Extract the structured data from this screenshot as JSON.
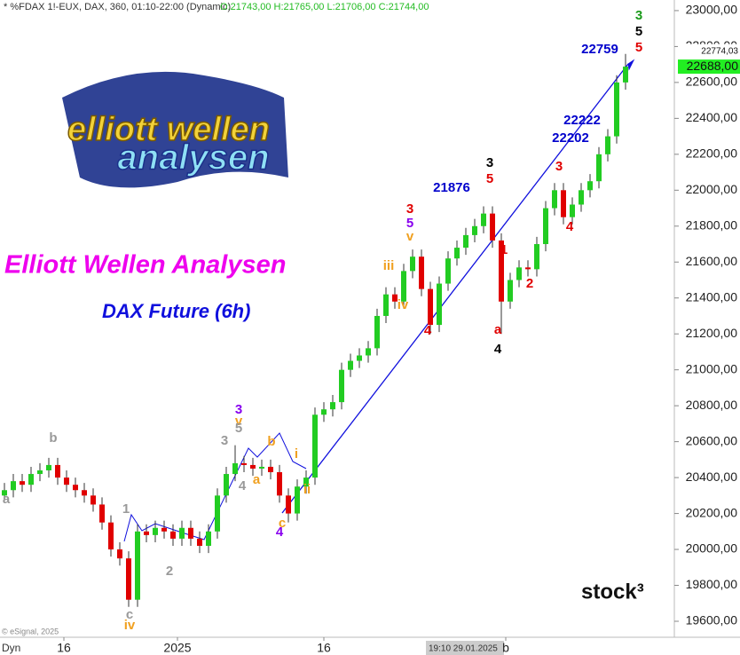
{
  "chart_data": {
    "type": "candlestick",
    "header": "* %FDAX 1!-EUX, DAX, 360, 01:10-22:00 (Dynamic)",
    "ohlc_header": "O:21743,00 H:21765,00 L:21706,00 C:21744,00",
    "title": "Elliott Wellen Analysen",
    "subtitle": "DAX Future (6h)",
    "logo": {
      "line1": "elliott wellen",
      "line2": "analysen"
    },
    "brand": "stock³",
    "copyright": "© eSignal, 2025",
    "cursor_label": "19:10 29.01.2025",
    "interval_label": "Dyn",
    "up_color": "#22cc22",
    "down_color": "#e00000",
    "ylim": [
      19511,
      23059
    ],
    "yticks": [
      {
        "value": 19600,
        "label": "19600,00"
      },
      {
        "value": 19800,
        "label": "19800,00"
      },
      {
        "value": 20000,
        "label": "20000,00"
      },
      {
        "value": 20200,
        "label": "20200,00"
      },
      {
        "value": 20400,
        "label": "20400,00"
      },
      {
        "value": 20600,
        "label": "20600,00"
      },
      {
        "value": 20800,
        "label": "20800,00"
      },
      {
        "value": 21000,
        "label": "21000,00"
      },
      {
        "value": 21200,
        "label": "21200,00"
      },
      {
        "value": 21400,
        "label": "21400,00"
      },
      {
        "value": 21600,
        "label": "21600,00"
      },
      {
        "value": 21800,
        "label": "21800,00"
      },
      {
        "value": 22000,
        "label": "22000,00"
      },
      {
        "value": 22200,
        "label": "22200,00"
      },
      {
        "value": 22400,
        "label": "22400,00"
      },
      {
        "value": 22600,
        "label": "22600,00"
      },
      {
        "value": 22800,
        "label": "22800,00"
      },
      {
        "value": 23000,
        "label": "23000,00"
      }
    ],
    "xticks": [
      {
        "value": 6.7,
        "label": "16"
      },
      {
        "value": 19.5,
        "label": "2025"
      },
      {
        "value": 36,
        "label": "16"
      },
      {
        "value": 56.5,
        "label": "b"
      }
    ],
    "price_markers": [
      {
        "value": 22774.03,
        "label": "22774,03",
        "color": "#ffffff"
      },
      {
        "value": 22688,
        "label": "22688,00",
        "color": "#22ee22"
      }
    ],
    "open": [
      20300,
      20330,
      20380,
      20360,
      20420,
      20440,
      20470,
      20400,
      20360,
      20330,
      20300,
      20250,
      20150,
      20000,
      19950,
      19720,
      20100,
      20080,
      20120,
      20100,
      20060,
      20120,
      20060,
      20020,
      20100,
      20300,
      20420,
      20480,
      20470,
      20450,
      20460,
      20430,
      20300,
      20200,
      20350,
      20400,
      20750,
      20780,
      20820,
      21000,
      21050,
      21080,
      21120,
      21300,
      21420,
      21380,
      21550,
      21630,
      21450,
      21250,
      21480,
      21620,
      21680,
      21750,
      21800,
      21870,
      21720,
      21380,
      21500,
      21570,
      21560,
      21700,
      21900,
      22000,
      21850,
      21920,
      22000,
      22050,
      22200,
      22300,
      22600
    ],
    "high": [
      20370,
      20420,
      20420,
      20460,
      20480,
      20510,
      20510,
      20440,
      20400,
      20370,
      20340,
      20290,
      20190,
      20040,
      19990,
      20140,
      20140,
      20160,
      20160,
      20140,
      20160,
      20160,
      20100,
      20140,
      20340,
      20460,
      20580,
      20520,
      20510,
      20500,
      20500,
      20470,
      20340,
      20390,
      20440,
      20790,
      20820,
      20860,
      21040,
      21090,
      21120,
      21160,
      21340,
      21460,
      21460,
      21590,
      21670,
      21670,
      21490,
      21520,
      21660,
      21720,
      21790,
      21840,
      21910,
      21910,
      21760,
      21540,
      21610,
      21610,
      21740,
      21940,
      22040,
      22040,
      21960,
      22040,
      22090,
      22240,
      22340,
      22640,
      22759
    ],
    "low": [
      20260,
      20290,
      20320,
      20320,
      20380,
      20400,
      20360,
      20320,
      20290,
      20260,
      20210,
      20110,
      19960,
      19910,
      19680,
      19680,
      20040,
      20040,
      20060,
      20020,
      20020,
      20020,
      19980,
      19980,
      20060,
      20260,
      20380,
      20430,
      20410,
      20410,
      20390,
      20260,
      20150,
      20160,
      20310,
      20360,
      20710,
      20740,
      20780,
      20960,
      21010,
      21040,
      21080,
      21260,
      21340,
      21340,
      21510,
      21410,
      21200,
      21210,
      21440,
      21580,
      21640,
      21710,
      21760,
      21680,
      21200,
      21340,
      21460,
      21520,
      21520,
      21660,
      21860,
      21810,
      21810,
      21880,
      21960,
      22010,
      22160,
      22260,
      22560
    ],
    "close": [
      20330,
      20380,
      20360,
      20420,
      20440,
      20470,
      20400,
      20360,
      20330,
      20300,
      20250,
      20150,
      20000,
      19950,
      19720,
      20100,
      20080,
      20120,
      20100,
      20060,
      20120,
      20060,
      20020,
      20100,
      20300,
      20420,
      20480,
      20470,
      20450,
      20460,
      20430,
      20300,
      20200,
      20350,
      20400,
      20750,
      20780,
      20820,
      21000,
      21050,
      21080,
      21120,
      21300,
      21420,
      21380,
      21550,
      21630,
      21450,
      21250,
      21480,
      21620,
      21680,
      21750,
      21800,
      21870,
      21720,
      21380,
      21500,
      21570,
      21560,
      21700,
      21900,
      22000,
      21850,
      21920,
      22000,
      22050,
      22200,
      22300,
      22600,
      22688
    ],
    "annotations": [
      {
        "text": "3",
        "color": "#1a9a1a"
      },
      {
        "text": "5",
        "color": "#000000"
      },
      {
        "text": "5",
        "color": "#e00000"
      },
      {
        "text": "22759",
        "color": "#0000cc"
      },
      {
        "text": "22222",
        "color": "#0000cc"
      },
      {
        "text": "22202",
        "color": "#0000cc"
      },
      {
        "text": "3",
        "color": "#000000"
      },
      {
        "text": "5",
        "color": "#e00000"
      },
      {
        "text": "21876",
        "color": "#0000cc"
      },
      {
        "text": "3",
        "color": "#e00000"
      },
      {
        "text": "5",
        "color": "#8800ee"
      },
      {
        "text": "v",
        "color": "#f0a020"
      },
      {
        "text": "iii",
        "color": "#f0a020"
      },
      {
        "text": "iv",
        "color": "#f0a020"
      },
      {
        "text": "4",
        "color": "#e00000"
      },
      {
        "text": "1",
        "color": "#e00000"
      },
      {
        "text": "2",
        "color": "#e00000"
      },
      {
        "text": "3",
        "color": "#e00000"
      },
      {
        "text": "4",
        "color": "#e00000"
      },
      {
        "text": "a",
        "color": "#e00000"
      },
      {
        "text": "4",
        "color": "#000000"
      },
      {
        "text": "3",
        "color": "#8800ee"
      },
      {
        "text": "v",
        "color": "#f0a020"
      },
      {
        "text": "5",
        "color": "#999999"
      },
      {
        "text": "3",
        "color": "#999999"
      },
      {
        "text": "4",
        "color": "#999999"
      },
      {
        "text": "a",
        "color": "#f0a020"
      },
      {
        "text": "b",
        "color": "#f0a020"
      },
      {
        "text": "i",
        "color": "#f0a020"
      },
      {
        "text": "ii",
        "color": "#f0a020"
      },
      {
        "text": "c",
        "color": "#f0a020"
      },
      {
        "text": "4",
        "color": "#8800ee"
      },
      {
        "text": "1",
        "color": "#999999"
      },
      {
        "text": "2",
        "color": "#999999"
      },
      {
        "text": "c",
        "color": "#999999"
      },
      {
        "text": "iv",
        "color": "#f0a020"
      },
      {
        "text": "b",
        "color": "#999999"
      },
      {
        "text": "a",
        "color": "#999999"
      }
    ]
  }
}
